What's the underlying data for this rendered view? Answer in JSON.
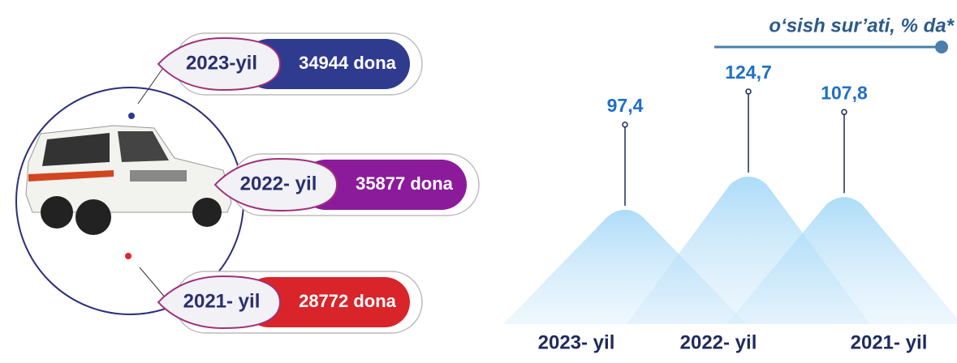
{
  "chart_data": [
    {
      "type": "pill",
      "categories": [
        "2023-yil",
        "2022- yil",
        "2021- yil"
      ],
      "values": [
        34944,
        35877,
        28772
      ],
      "value_labels": [
        "34944 dona",
        "35877 dona",
        "28772 dona"
      ],
      "colors": [
        "#2f3b8f",
        "#8c1b9b",
        "#d9242a"
      ]
    },
    {
      "type": "mountain",
      "title": "o‘sish sur’ati, % da*",
      "categories": [
        "2023- yil",
        "2022- yil",
        "2021- yil"
      ],
      "values": [
        97.4,
        124.7,
        107.8
      ],
      "value_labels": [
        "97,4",
        "124,7",
        "107,8"
      ],
      "color": "#2e9be6"
    }
  ]
}
